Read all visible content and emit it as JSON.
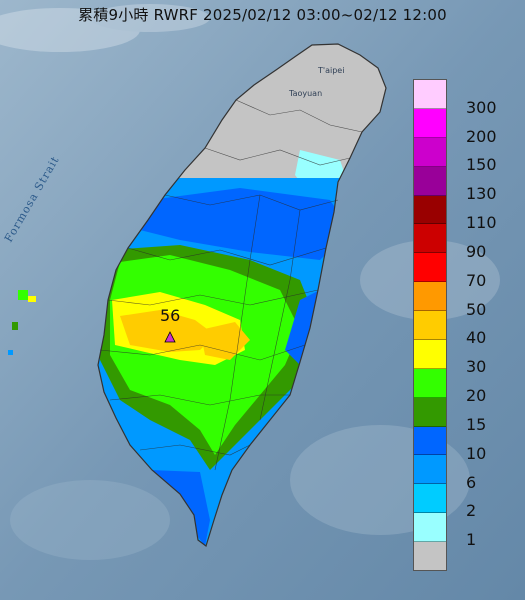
{
  "title": "累積9小時 RWRF 2025/02/12 03:00~02/12 12:00",
  "strait_label": "Formosa Strait",
  "cities": [
    "T'aipei",
    "Taoyuan"
  ],
  "max_value_label": "56",
  "colors": {
    "sea_background": "#6f95b4",
    "land_gray": "#c4c4c4",
    "marker": "#cc33cc"
  },
  "legend": {
    "labels": [
      "300",
      "200",
      "150",
      "130",
      "110",
      "90",
      "70",
      "50",
      "40",
      "30",
      "20",
      "15",
      "10",
      "6",
      "2",
      "1"
    ],
    "colors": [
      "#ffccff",
      "#ff00ff",
      "#cc00cc",
      "#990099",
      "#990000",
      "#cc0000",
      "#ff0000",
      "#ff9900",
      "#ffcc00",
      "#ffff00",
      "#33ff00",
      "#339900",
      "#0066ff",
      "#0099ff",
      "#00ccff",
      "#99ffff",
      "#c4c4c4"
    ]
  }
}
